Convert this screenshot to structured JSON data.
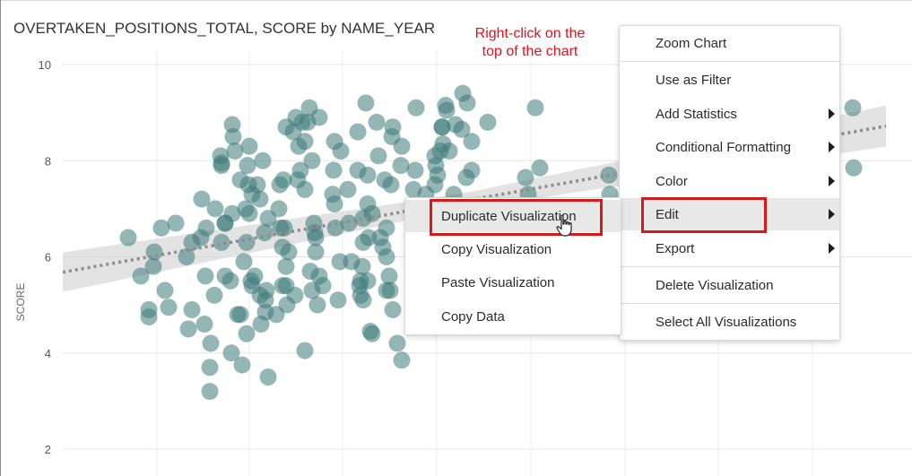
{
  "chart": {
    "title": "OVERTAKEN_POSITIONS_TOTAL, SCORE by NAME_YEAR",
    "ylabel": "SCORE",
    "yticks": [
      "10",
      "8",
      "6",
      "4",
      "2"
    ]
  },
  "annotation": {
    "line1": "Right-click on the",
    "line2": "top of the chart"
  },
  "context_menu": {
    "items": [
      {
        "label": "Zoom Chart"
      },
      {
        "label": "Use as Filter"
      },
      {
        "label": "Add Statistics"
      },
      {
        "label": "Conditional Formatting"
      },
      {
        "label": "Color"
      },
      {
        "label": "Edit"
      },
      {
        "label": "Export"
      },
      {
        "label": "Delete Visualization"
      },
      {
        "label": "Select All Visualizations"
      }
    ]
  },
  "edit_submenu": {
    "items": [
      {
        "label": "Duplicate Visualization"
      },
      {
        "label": "Copy Visualization"
      },
      {
        "label": "Paste Visualization"
      },
      {
        "label": "Copy Data"
      }
    ]
  },
  "colors": {
    "point": "#3d7a78",
    "trend_band": "#d9d9d9",
    "trend_line": "#8c8c8c",
    "annotation": "#e2111d",
    "highlight_box": "#d61a1a"
  },
  "icons": {
    "submenu_arrow": "triangle-right-icon",
    "cursor": "hand-pointer-icon"
  },
  "chart_data": {
    "type": "scatter",
    "ylabel": "SCORE",
    "ylim": [
      1.4,
      10.2
    ],
    "yticks": [
      10,
      8,
      6,
      4,
      2
    ],
    "grid": true,
    "trendline": {
      "type": "linear",
      "confidence_band": true
    },
    "points_score": [
      6.4,
      5.6,
      6.1,
      5.8,
      6.6,
      6.7,
      4.9,
      4.75,
      5.3,
      4.95,
      4.9,
      6.6,
      6.4,
      6.3,
      6.0,
      4.5,
      7.2,
      7.0,
      6.3,
      5.6,
      4.6,
      4.2,
      3.7,
      3.2,
      5.2,
      6.9,
      8.1,
      7.9,
      8.75,
      8.5,
      8.2,
      7.95,
      6.7,
      6.7,
      5.6,
      5.5,
      4.8,
      4.0,
      3.75,
      7.6,
      7.5,
      7.9,
      8.3,
      7.0,
      6.9,
      6.3,
      5.9,
      5.5,
      4.8,
      4.4,
      6.8,
      6.5,
      5.3,
      4.85,
      4.6,
      3.5,
      7.3,
      7.2,
      8.0,
      7.5,
      5.1,
      5.6,
      5.2,
      5.4,
      7.6,
      7.5,
      7.0,
      6.6,
      6.2,
      5.8,
      5.4,
      5.0,
      4.8,
      8.7,
      8.6,
      8.3,
      8.9,
      7.8,
      7.6,
      6.6,
      6.1,
      5.4,
      5.2,
      8.0,
      8.4,
      9.1,
      8.8,
      6.5,
      6.4,
      5.3,
      4.05,
      7.4,
      6.7,
      6.1,
      5.7,
      5.6,
      5.4,
      5.0,
      8.8,
      8.9,
      7.8,
      7.3,
      6.6,
      5.9,
      5.1,
      8.2,
      8.4,
      7.1,
      6.7,
      5.9,
      5.4,
      5.2,
      8.6,
      7.8,
      7.4,
      6.8,
      6.3,
      5.8,
      5.5,
      7.7,
      7.1,
      6.4,
      5.5,
      5.1,
      4.45,
      4.4,
      9.2,
      8.8,
      8.1,
      7.6,
      6.6,
      6.0,
      5.6,
      5.3,
      4.9,
      8.7,
      7.5,
      6.9,
      6.4,
      6.2,
      5.3,
      4.2,
      3.85,
      8.5,
      7.9,
      7.4,
      6.0,
      9.1,
      8.3,
      7.8,
      7.5,
      8.1,
      8.7,
      7.3,
      8.2,
      7.7,
      7.9,
      8.2,
      8.35,
      8.7,
      9.15,
      9.05,
      8.75,
      8.65,
      7.65,
      7.8,
      7.3,
      8.4,
      9.4,
      9.2,
      8.8,
      7.65,
      7.3,
      9.1,
      7.85
    ]
  }
}
